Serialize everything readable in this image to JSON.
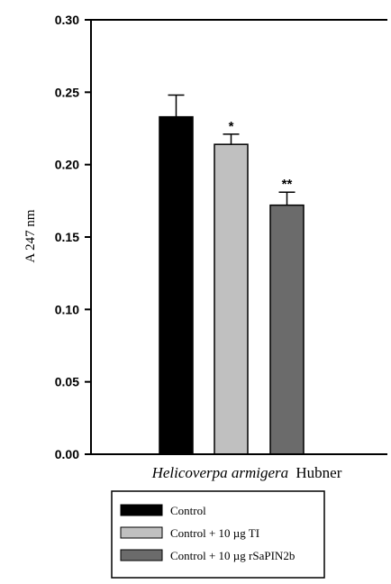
{
  "chart_data": {
    "type": "bar",
    "title": "",
    "ylabel": "A 247 nm",
    "xlabel_italic": "Helicoverpa armigera",
    "xlabel_plain": "Hubner",
    "ylim": [
      0,
      0.3
    ],
    "yticks": [
      "0.00",
      "0.05",
      "0.10",
      "0.15",
      "0.20",
      "0.25",
      "0.30"
    ],
    "series": [
      {
        "name": "Control",
        "value": 0.233,
        "error": 0.015,
        "annotation": "",
        "color": "#000000"
      },
      {
        "name": "Control + 10 µg TI",
        "value": 0.214,
        "error": 0.007,
        "annotation": "*",
        "color": "#c0c0c0"
      },
      {
        "name": "Control + 10 µg rSaPIN2b",
        "value": 0.172,
        "error": 0.009,
        "annotation": "**",
        "color": "#6b6b6b"
      }
    ],
    "grid": false,
    "legend_position": "bottom"
  }
}
